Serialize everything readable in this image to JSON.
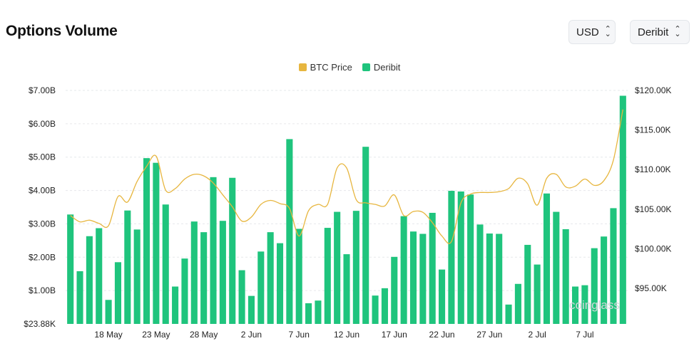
{
  "header": {
    "title": "Options Volume"
  },
  "controls": {
    "currency": "USD",
    "exchange": "Deribit"
  },
  "watermark": "coinglass",
  "colors": {
    "bar": "#1fc47d",
    "line": "#e7b63f",
    "grid": "#e6e8eb"
  },
  "chart_data": {
    "type": "bar",
    "title": "Options Volume",
    "legend_position": "top-center",
    "grid": true,
    "x_tick_labels": [
      "18 May",
      "23 May",
      "28 May",
      "2 Jun",
      "7 Jun",
      "12 Jun",
      "17 Jun",
      "22 Jun",
      "27 Jun",
      "2 Jul",
      "7 Jul"
    ],
    "x_tick_indices": [
      4,
      9,
      14,
      19,
      24,
      29,
      34,
      39,
      44,
      49,
      54
    ],
    "y_left": {
      "ticks": [
        "$23.88K",
        "$1.00B",
        "$2.00B",
        "$3.00B",
        "$4.00B",
        "$5.00B",
        "$6.00B",
        "$7.00B"
      ],
      "range": [
        0,
        7.0
      ],
      "unit": "B USD"
    },
    "y_right": {
      "ticks": [
        "$95.00K",
        "$100.00K",
        "$105.00K",
        "$110.00K",
        "$115.00K",
        "$120.00K"
      ],
      "range": [
        90.5,
        120.0
      ],
      "unit": "K USD"
    },
    "series": [
      {
        "name": "Deribit",
        "type": "bar",
        "axis": "left",
        "values": [
          3.28,
          1.58,
          2.63,
          2.87,
          0.72,
          1.85,
          3.4,
          2.83,
          4.97,
          4.83,
          3.58,
          1.12,
          1.96,
          3.07,
          2.75,
          4.4,
          3.09,
          4.38,
          1.61,
          0.84,
          2.17,
          2.75,
          2.42,
          5.54,
          2.85,
          0.62,
          0.7,
          2.88,
          3.36,
          2.09,
          3.39,
          5.31,
          0.85,
          1.07,
          2.01,
          3.23,
          2.77,
          2.7,
          3.33,
          1.63,
          3.99,
          3.97,
          3.88,
          2.98,
          2.71,
          2.7,
          0.58,
          1.2,
          2.37,
          1.78,
          3.91,
          3.36,
          2.84,
          1.12,
          1.16,
          2.27,
          2.62,
          3.47,
          6.84
        ]
      },
      {
        "name": "BTC Price",
        "type": "line",
        "axis": "right",
        "values": [
          104.2,
          103.4,
          103.6,
          103.2,
          102.9,
          106.6,
          105.9,
          108.5,
          110.4,
          111.7,
          107.4,
          107.6,
          108.8,
          109.4,
          109.2,
          108.3,
          106.8,
          105.3,
          103.5,
          104.0,
          105.6,
          106.1,
          105.7,
          105.1,
          101.6,
          104.8,
          105.6,
          105.6,
          110.2,
          110.2,
          106.2,
          105.8,
          105.6,
          105.4,
          106.8,
          104.2,
          104.7,
          104.6,
          103.3,
          101.6,
          100.9,
          105.8,
          106.9,
          107.1,
          107.1,
          107.2,
          107.6,
          108.9,
          108.2,
          105.5,
          108.9,
          109.4,
          107.8,
          107.9,
          108.8,
          108.0,
          108.6,
          111.2,
          117.6
        ]
      }
    ]
  }
}
